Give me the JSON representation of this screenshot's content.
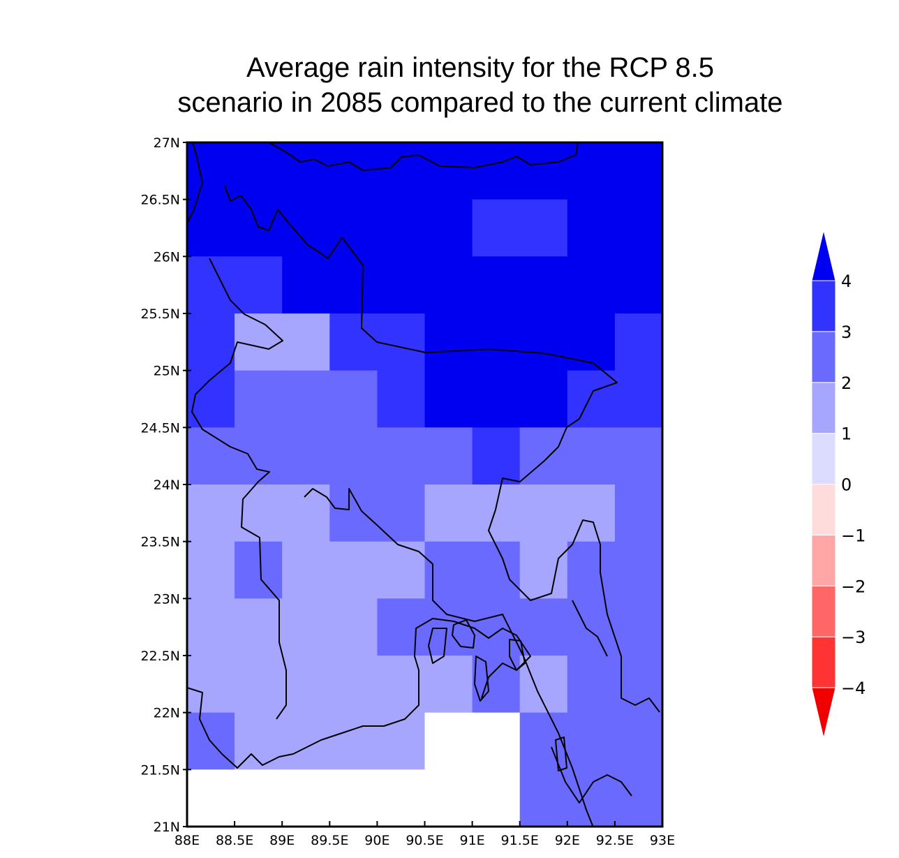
{
  "title_lines": [
    "Average rain intensity for the RCP 8.5",
    "scenario in 2085 compared to the current climate"
  ],
  "chart_data": {
    "type": "heatmap",
    "title": "Average rain intensity for the RCP 8.5 scenario in 2085 compared to the current climate",
    "xlabel": "",
    "ylabel": "",
    "xlim": [
      88,
      93
    ],
    "ylim": [
      21,
      27
    ],
    "x_ticks": [
      "88E",
      "88.5E",
      "89E",
      "89.5E",
      "90E",
      "90.5E",
      "91E",
      "91.5E",
      "92E",
      "92.5E",
      "93E"
    ],
    "y_ticks": [
      "21N",
      "21.5N",
      "22N",
      "22.5N",
      "23N",
      "23.5N",
      "24N",
      "24.5N",
      "25N",
      "25.5N",
      "26N",
      "26.5N",
      "27N"
    ],
    "grid_lon_west_edges": [
      88,
      88.5,
      89,
      89.5,
      90,
      90.5,
      91,
      91.5,
      92,
      92.5
    ],
    "grid_lat_north_edges": [
      27,
      26.5,
      26,
      25.5,
      25,
      24.5,
      24,
      23.5,
      23,
      22.5,
      22,
      21.5
    ],
    "cell_width_deg": 0.5,
    "cell_height_deg": 0.5,
    "legend": "right",
    "missing_value_color": "#ffffff",
    "values_grid_rows_north_to_south": [
      [
        4,
        4,
        4,
        4,
        4,
        4,
        4,
        4,
        4,
        4
      ],
      [
        4,
        4,
        4,
        4,
        4,
        4,
        3,
        3,
        4,
        4
      ],
      [
        3,
        3,
        4,
        4,
        4,
        4,
        4,
        4,
        4,
        4
      ],
      [
        3,
        1,
        1,
        3,
        3,
        4,
        4,
        4,
        4,
        3
      ],
      [
        3,
        2,
        2,
        2,
        3,
        4,
        4,
        4,
        3,
        3
      ],
      [
        2,
        2,
        2,
        2,
        2,
        2,
        3,
        2,
        2,
        2
      ],
      [
        1,
        1,
        1,
        2,
        2,
        1,
        1,
        1,
        1,
        2
      ],
      [
        1,
        2,
        1,
        1,
        1,
        2,
        2,
        1,
        2,
        2
      ],
      [
        1,
        1,
        1,
        1,
        2,
        2,
        2,
        2,
        2,
        2
      ],
      [
        1,
        1,
        1,
        1,
        1,
        1,
        2,
        1,
        2,
        2
      ],
      [
        2,
        1,
        1,
        1,
        1,
        null,
        null,
        2,
        2,
        2
      ],
      [
        null,
        null,
        null,
        null,
        null,
        null,
        null,
        2,
        2,
        2
      ]
    ],
    "colorbar": {
      "bins": [
        {
          "from": null,
          "to": -4,
          "color": "#f00000"
        },
        {
          "from": -4,
          "to": -3,
          "color": "#ff3333"
        },
        {
          "from": -3,
          "to": -2,
          "color": "#ff6666"
        },
        {
          "from": -2,
          "to": -1,
          "color": "#ffa6a6"
        },
        {
          "from": -1,
          "to": 0,
          "color": "#ffdcdc"
        },
        {
          "from": 0,
          "to": 1,
          "color": "#dcdcff"
        },
        {
          "from": 1,
          "to": 2,
          "color": "#a6a6ff"
        },
        {
          "from": 2,
          "to": 3,
          "color": "#6a6aff"
        },
        {
          "from": 3,
          "to": 4,
          "color": "#3333ff"
        },
        {
          "from": 4,
          "to": null,
          "color": "#0000f0"
        }
      ],
      "labels": [
        "−4",
        "−3",
        "−2",
        "−1",
        "0",
        "1",
        "2",
        "3",
        "4"
      ]
    },
    "value_colors": {
      "1": "#a6a6ff",
      "2": "#6a6aff",
      "3": "#3333ff",
      "4": "#0000f0"
    }
  }
}
